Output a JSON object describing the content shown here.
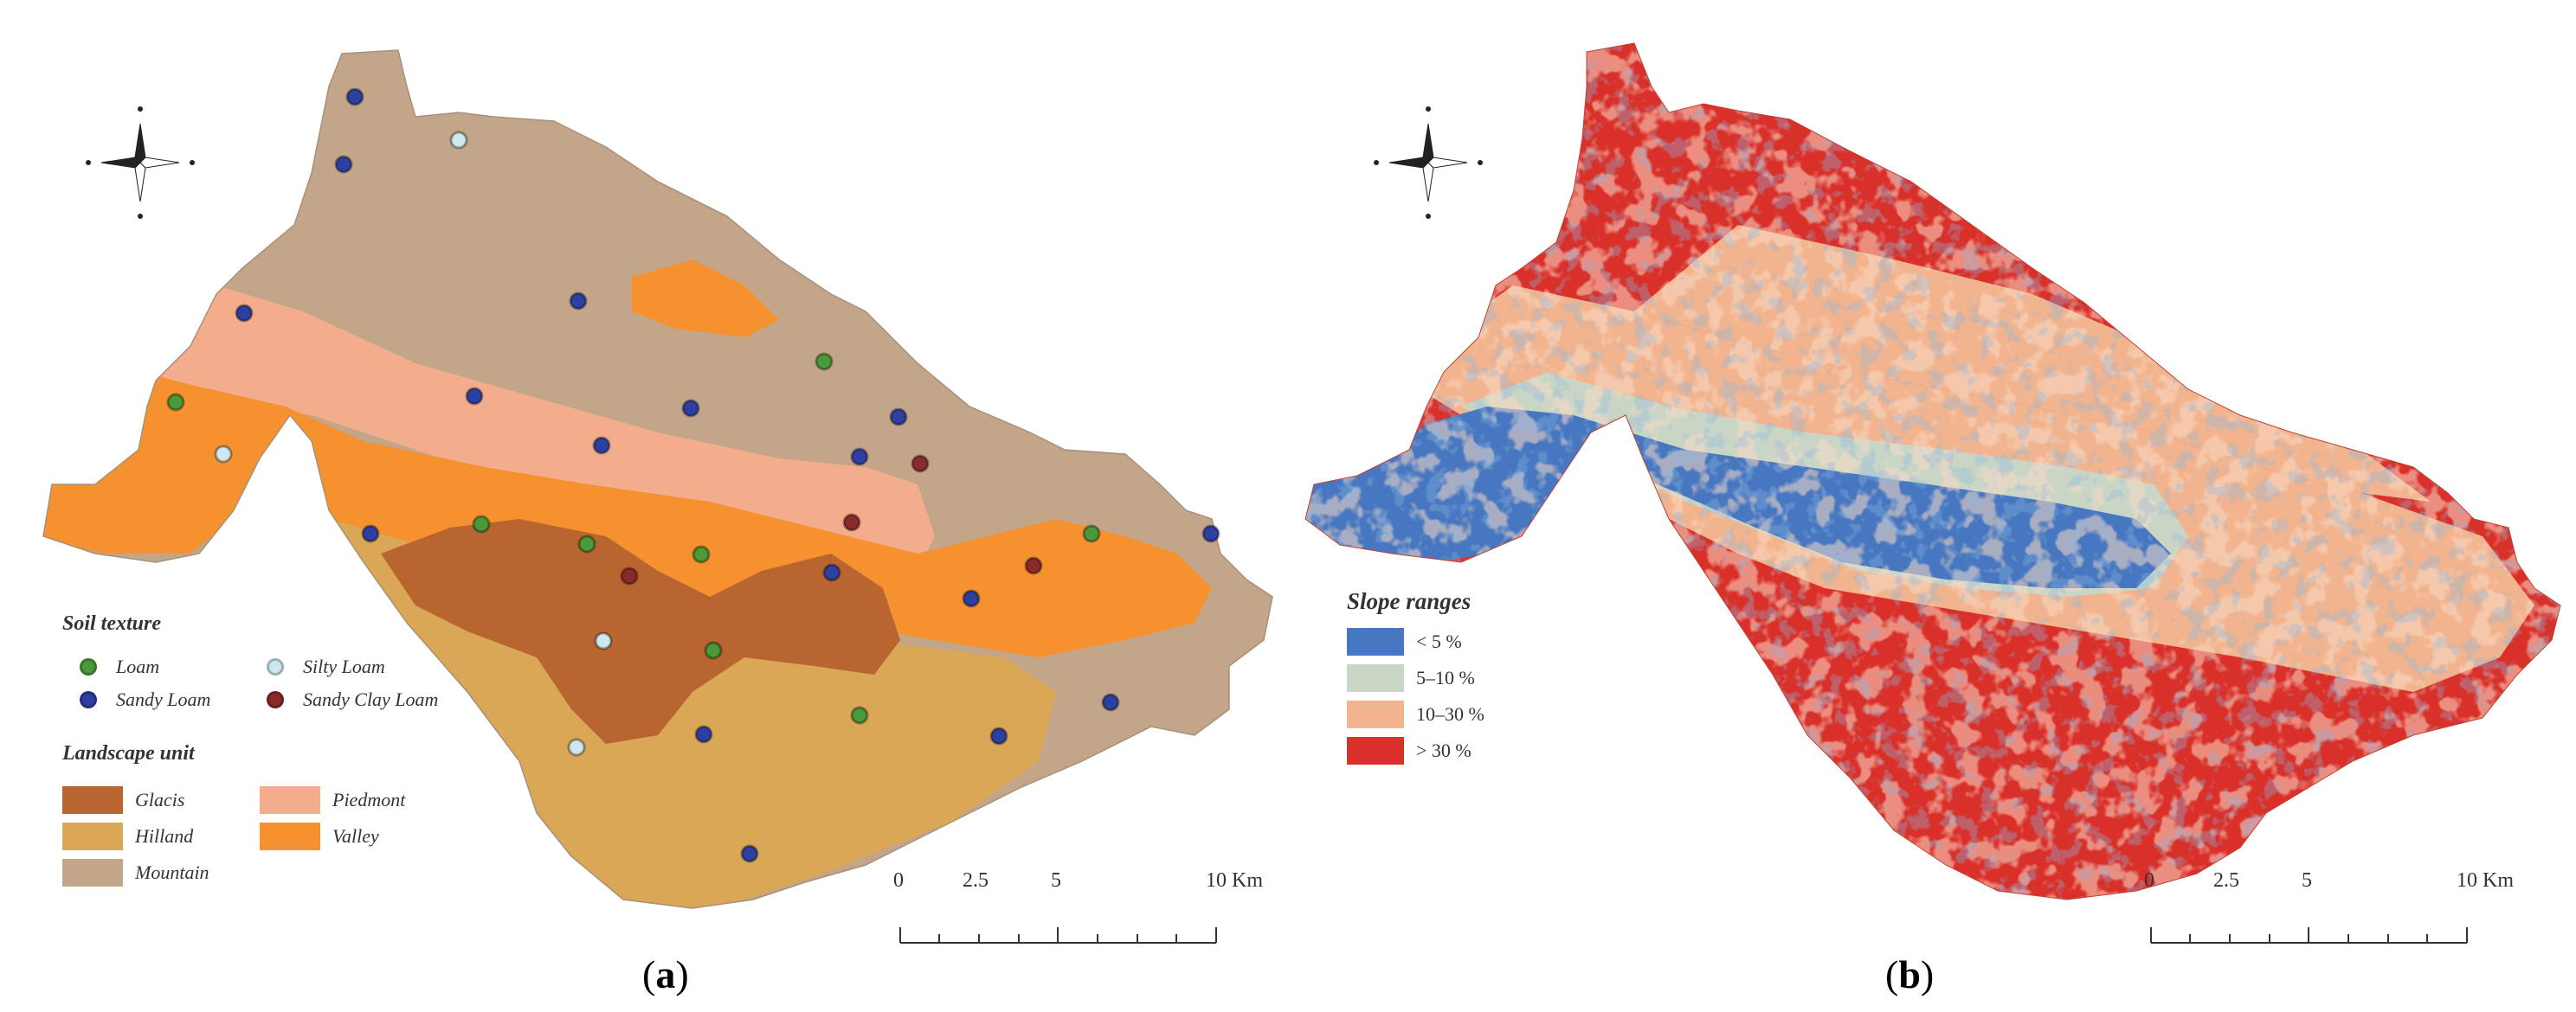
{
  "panel_a": {
    "caption_open": "(",
    "caption_letter": "a",
    "caption_close": ")",
    "legend_soil": {
      "title": "Soil texture",
      "items": [
        {
          "label": "Loam",
          "color": "#4a9a3a"
        },
        {
          "label": "Silty Loam",
          "color": "#cfe8ee"
        },
        {
          "label": "Sandy Loam",
          "color": "#2d3fa0"
        },
        {
          "label": "Sandy Clay Loam",
          "color": "#8a2a2a"
        }
      ]
    },
    "legend_landscape": {
      "title": "Landscape unit",
      "items": [
        {
          "label": "Glacis",
          "color": "#b8652f"
        },
        {
          "label": "Piedmont",
          "color": "#f4ad8c"
        },
        {
          "label": "Hilland",
          "color": "#d9a756"
        },
        {
          "label": "Valley",
          "color": "#f5922f"
        },
        {
          "label": "Mountain",
          "color": "#c3a58a"
        }
      ]
    },
    "scale": {
      "ticks": [
        "0",
        "2.5",
        "5",
        "10 Km"
      ]
    }
  },
  "panel_b": {
    "caption_open": "(",
    "caption_letter": "b",
    "caption_close": ")",
    "legend_slope": {
      "title": "Slope ranges",
      "items": [
        {
          "label": "< 5 %",
          "color": "#4677c0"
        },
        {
          "label": "5–10 %",
          "color": "#c9d6c6"
        },
        {
          "label": "10–30 %",
          "color": "#f2b48e"
        },
        {
          "label": "> 30 %",
          "color": "#d9302a"
        }
      ]
    },
    "scale": {
      "ticks": [
        "0",
        "2.5",
        "5",
        "10 Km"
      ]
    }
  }
}
